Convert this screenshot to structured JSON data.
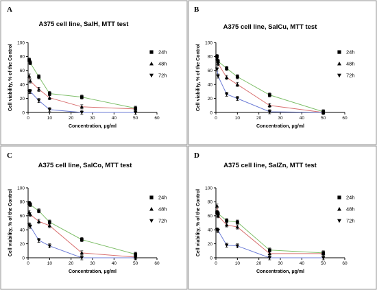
{
  "figure": {
    "panel_letters": [
      "A",
      "B",
      "C",
      "D"
    ]
  },
  "chart_data": [
    {
      "type": "line",
      "title": "A375 cell line, SalH, MTT test",
      "xlabel": "Concentration, μg/ml",
      "ylabel": "Cell viability, % of the Control",
      "xlim": [
        0,
        60
      ],
      "ylim": [
        0,
        100
      ],
      "x_ticks": [
        0,
        10,
        20,
        30,
        40,
        50,
        60
      ],
      "y_ticks": [
        0,
        20,
        40,
        60,
        80,
        100
      ],
      "grid": false,
      "legend": "right",
      "x": [
        0.5,
        1,
        5,
        10,
        25,
        50
      ],
      "series": [
        {
          "name": "24h",
          "marker": "square",
          "color": "#7fbf6a",
          "values": [
            75,
            71,
            51,
            27,
            22,
            6
          ]
        },
        {
          "name": "48h",
          "marker": "triangle-up",
          "color": "#d97070",
          "values": [
            52,
            45,
            33,
            21,
            8,
            5
          ]
        },
        {
          "name": "72h",
          "marker": "triangle-down",
          "color": "#6b7bd6",
          "values": [
            30,
            30,
            17,
            4,
            0,
            0
          ]
        }
      ]
    },
    {
      "type": "line",
      "title": "A375 cell line, SalCu, MTT test",
      "xlabel": "Concentration, μg/ml",
      "ylabel": "Cell viability, % of the Control",
      "xlim": [
        0,
        60
      ],
      "ylim": [
        0,
        100
      ],
      "x_ticks": [
        0,
        10,
        20,
        30,
        40,
        50,
        60
      ],
      "y_ticks": [
        0,
        20,
        40,
        60,
        80,
        100
      ],
      "grid": false,
      "legend": "right",
      "x": [
        0.5,
        1,
        5,
        10,
        25,
        50
      ],
      "series": [
        {
          "name": "24h",
          "marker": "square",
          "color": "#7fbf6a",
          "values": [
            80,
            73,
            63,
            51,
            25,
            1
          ]
        },
        {
          "name": "48h",
          "marker": "triangle-up",
          "color": "#d97070",
          "values": [
            77,
            70,
            50,
            40,
            10,
            0
          ]
        },
        {
          "name": "72h",
          "marker": "triangle-down",
          "color": "#6b7bd6",
          "values": [
            62,
            52,
            26,
            20,
            1,
            0
          ]
        }
      ]
    },
    {
      "type": "line",
      "title": "A375 cell line, SalCo, MTT test",
      "xlabel": "Concentration, μg/ml",
      "ylabel": "Cell viability, % of the Control",
      "xlim": [
        0,
        60
      ],
      "ylim": [
        0,
        100
      ],
      "x_ticks": [
        0,
        10,
        20,
        30,
        40,
        50,
        60
      ],
      "y_ticks": [
        0,
        20,
        40,
        60,
        80,
        100
      ],
      "grid": false,
      "legend": "right",
      "x": [
        0.5,
        1,
        5,
        10,
        25,
        50
      ],
      "series": [
        {
          "name": "24h",
          "marker": "square",
          "color": "#7fbf6a",
          "values": [
            78,
            76,
            67,
            51,
            26,
            5
          ]
        },
        {
          "name": "48h",
          "marker": "triangle-up",
          "color": "#d97070",
          "values": [
            65,
            62,
            52,
            46,
            7,
            1
          ]
        },
        {
          "name": "72h",
          "marker": "triangle-down",
          "color": "#6b7bd6",
          "values": [
            47,
            45,
            25,
            17,
            0,
            0
          ]
        }
      ]
    },
    {
      "type": "line",
      "title": "A375 cell line, SalZn, MTT test",
      "xlabel": "Concentration, μg/ml",
      "ylabel": "Cell viability, % of the Control",
      "xlim": [
        0,
        60
      ],
      "ylim": [
        0,
        100
      ],
      "x_ticks": [
        0,
        10,
        20,
        30,
        40,
        50,
        60
      ],
      "y_ticks": [
        0,
        20,
        40,
        60,
        80,
        100
      ],
      "grid": false,
      "legend": "right",
      "x": [
        0.5,
        1,
        5,
        10,
        25,
        50
      ],
      "series": [
        {
          "name": "24h",
          "marker": "square",
          "color": "#7fbf6a",
          "values": [
            65,
            63,
            53,
            51,
            11,
            7
          ]
        },
        {
          "name": "48h",
          "marker": "triangle-up",
          "color": "#d97070",
          "values": [
            74,
            60,
            47,
            44,
            6,
            6
          ]
        },
        {
          "name": "72h",
          "marker": "triangle-down",
          "color": "#6b7bd6",
          "values": [
            40,
            39,
            18,
            17,
            0,
            0
          ]
        }
      ]
    }
  ]
}
